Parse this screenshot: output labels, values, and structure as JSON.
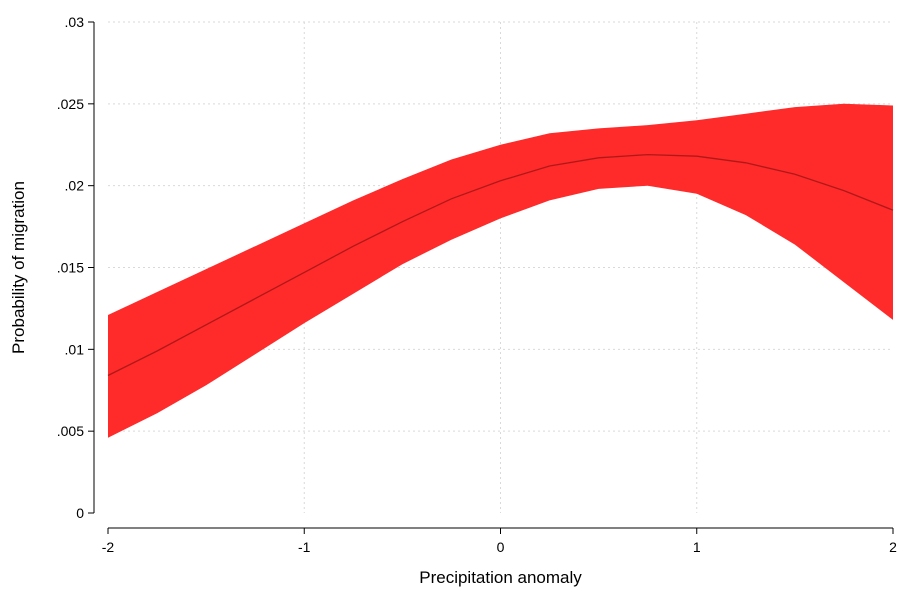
{
  "chart_data": {
    "type": "area",
    "title": "",
    "xlabel": "Precipitation anomaly",
    "ylabel": "Probability of migration",
    "xlim": [
      -2,
      2
    ],
    "ylim": [
      0,
      0.03
    ],
    "x_ticks": [
      -2,
      -1,
      0,
      1,
      2
    ],
    "x_tick_labels": [
      "-2",
      "-1",
      "0",
      "1",
      "2"
    ],
    "y_ticks": [
      0,
      0.005,
      0.01,
      0.015,
      0.02,
      0.025,
      0.03
    ],
    "y_tick_labels": [
      "0",
      ".005",
      ".01",
      ".015",
      ".02",
      ".025",
      ".03"
    ],
    "grid": true,
    "legend": "none",
    "colors": {
      "band": "#ff2a2a",
      "line": "#b01818",
      "grid": "#d9d9d9",
      "axis": "#000000"
    },
    "x": [
      -2,
      -1.75,
      -1.5,
      -1.25,
      -1,
      -0.75,
      -0.5,
      -0.25,
      0,
      0.25,
      0.5,
      0.75,
      1,
      1.25,
      1.5,
      1.75,
      2
    ],
    "series": [
      {
        "role": "estimate",
        "values": [
          0.0084,
          0.0099,
          0.0115,
          0.0131,
          0.0147,
          0.0163,
          0.0178,
          0.0192,
          0.0203,
          0.0212,
          0.0217,
          0.0219,
          0.0218,
          0.0214,
          0.0207,
          0.0197,
          0.0185
        ]
      },
      {
        "role": "upper",
        "values": [
          0.0121,
          0.0135,
          0.0149,
          0.0163,
          0.0177,
          0.0191,
          0.0204,
          0.0216,
          0.0225,
          0.0232,
          0.0235,
          0.0237,
          0.024,
          0.0244,
          0.0248,
          0.025,
          0.0249
        ]
      },
      {
        "role": "lower",
        "values": [
          0.0046,
          0.0061,
          0.0078,
          0.0097,
          0.0116,
          0.0134,
          0.0152,
          0.0167,
          0.018,
          0.0191,
          0.0198,
          0.02,
          0.0195,
          0.0182,
          0.0164,
          0.0141,
          0.0118
        ]
      }
    ]
  }
}
